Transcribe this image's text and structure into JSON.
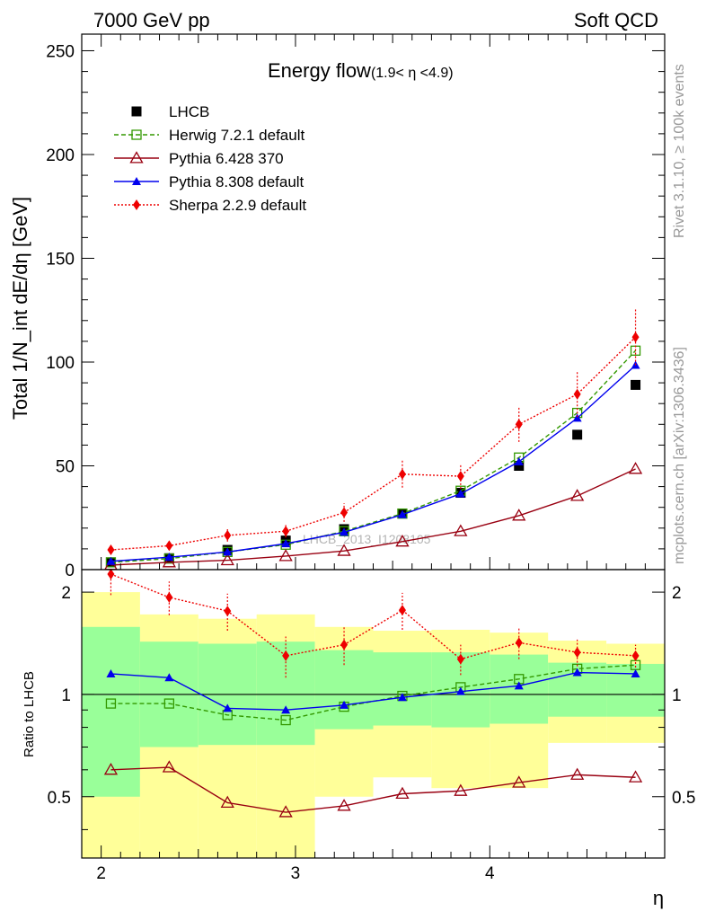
{
  "header": {
    "left": "7000 GeV pp",
    "right": "Soft QCD"
  },
  "title": {
    "main": "Energy flow",
    "sub": "(1.9< η <4.9)"
  },
  "side_labels": {
    "rivet": "Rivet 3.1.10, ≥ 100k events",
    "mcplots": "mcplots.cern.ch [arXiv:1306.3436]"
  },
  "watermark": "LHCB_2013_I1208105",
  "chart_data": {
    "type": "line",
    "upper": {
      "ylabel": "Total 1/N_int dE/dη [GeV]",
      "ylim": [
        0,
        258
      ],
      "yticks": [
        0,
        50,
        100,
        150,
        200,
        250
      ]
    },
    "lower": {
      "ylabel": "Ratio to LHCB",
      "ylim": [
        0.33,
        2.33
      ],
      "yticks": [
        0.5,
        1,
        2
      ],
      "ytick_labels": [
        "0.5",
        "1",
        "2"
      ],
      "reference_line": 1,
      "band_inner_color": "#99ff99",
      "band_outer_color": "#ffff99",
      "band_edges": [
        1.9,
        2.2,
        2.5,
        2.8,
        3.1,
        3.4,
        3.7,
        4.0,
        4.3,
        4.6,
        4.9
      ],
      "band_inner_lo": [
        0.5,
        0.7,
        0.71,
        0.71,
        0.79,
        0.81,
        0.8,
        0.82,
        0.86,
        0.86
      ],
      "band_inner_hi": [
        1.58,
        1.43,
        1.41,
        1.43,
        1.35,
        1.33,
        1.33,
        1.31,
        1.24,
        1.23
      ],
      "band_outer_lo": [
        0.33,
        0.33,
        0.33,
        0.33,
        0.5,
        0.57,
        0.53,
        0.53,
        0.72,
        0.72
      ],
      "band_outer_hi": [
        2.0,
        1.72,
        1.67,
        1.72,
        1.58,
        1.54,
        1.55,
        1.52,
        1.44,
        1.41
      ]
    },
    "xlabel": "η",
    "xlim": [
      1.9,
      4.9
    ],
    "xticks": [
      2,
      3,
      4
    ],
    "x": [
      2.05,
      2.35,
      2.65,
      2.95,
      3.25,
      3.55,
      3.85,
      4.15,
      4.45,
      4.75
    ],
    "series": [
      {
        "name": "LHCB",
        "key": "data",
        "color": "#000000",
        "marker": "square-filled",
        "line": "none",
        "values": [
          3.5,
          5.5,
          9.5,
          14,
          19.5,
          27,
          37,
          50,
          65,
          89
        ],
        "ratio": null
      },
      {
        "name": "Herwig 7.2.1 default",
        "key": "herwig",
        "color": "#339900",
        "marker": "square-open",
        "line": "dashed",
        "values": [
          3.5,
          5.3,
          8.5,
          12,
          18.5,
          27,
          38,
          54,
          75.5,
          105.5
        ],
        "ratio": [
          0.94,
          0.94,
          0.87,
          0.84,
          0.92,
          0.99,
          1.05,
          1.11,
          1.19,
          1.22
        ]
      },
      {
        "name": "Pythia 6.428 370",
        "key": "py6",
        "color": "#990011",
        "marker": "triangle-open",
        "line": "solid",
        "values": [
          2.2,
          3.5,
          4.5,
          6.5,
          9,
          13.5,
          18.5,
          26,
          35.5,
          48.5
        ],
        "ratio": [
          0.6,
          0.61,
          0.48,
          0.45,
          0.47,
          0.51,
          0.52,
          0.55,
          0.58,
          0.57
        ]
      },
      {
        "name": "Pythia 8.308 default",
        "key": "py8",
        "color": "#0000ee",
        "marker": "triangle-filled",
        "line": "solid",
        "values": [
          4,
          6,
          8.5,
          12.5,
          18,
          26.5,
          36.5,
          52,
          73,
          98.5
        ],
        "ratio": [
          1.15,
          1.12,
          0.91,
          0.9,
          0.93,
          0.98,
          1.02,
          1.06,
          1.16,
          1.15
        ]
      },
      {
        "name": "Sherpa 2.2.9 default",
        "key": "sherpa",
        "color": "#ee0000",
        "marker": "diamond-filled",
        "line": "dotted",
        "values": [
          9.5,
          11.5,
          16.5,
          18.5,
          27.5,
          46,
          45,
          70,
          84.5,
          112
        ],
        "ratio": [
          2.26,
          1.93,
          1.76,
          1.3,
          1.4,
          1.77,
          1.27,
          1.42,
          1.33,
          1.3
        ],
        "err_main": [
          2,
          2,
          3,
          3,
          4.5,
          6.5,
          6,
          8.5,
          11,
          13.5
        ],
        "err_ratio": [
          0.3,
          0.22,
          0.22,
          0.18,
          0.18,
          0.22,
          0.13,
          0.15,
          0.12,
          0.1
        ]
      }
    ],
    "legend_position": "top-left"
  }
}
